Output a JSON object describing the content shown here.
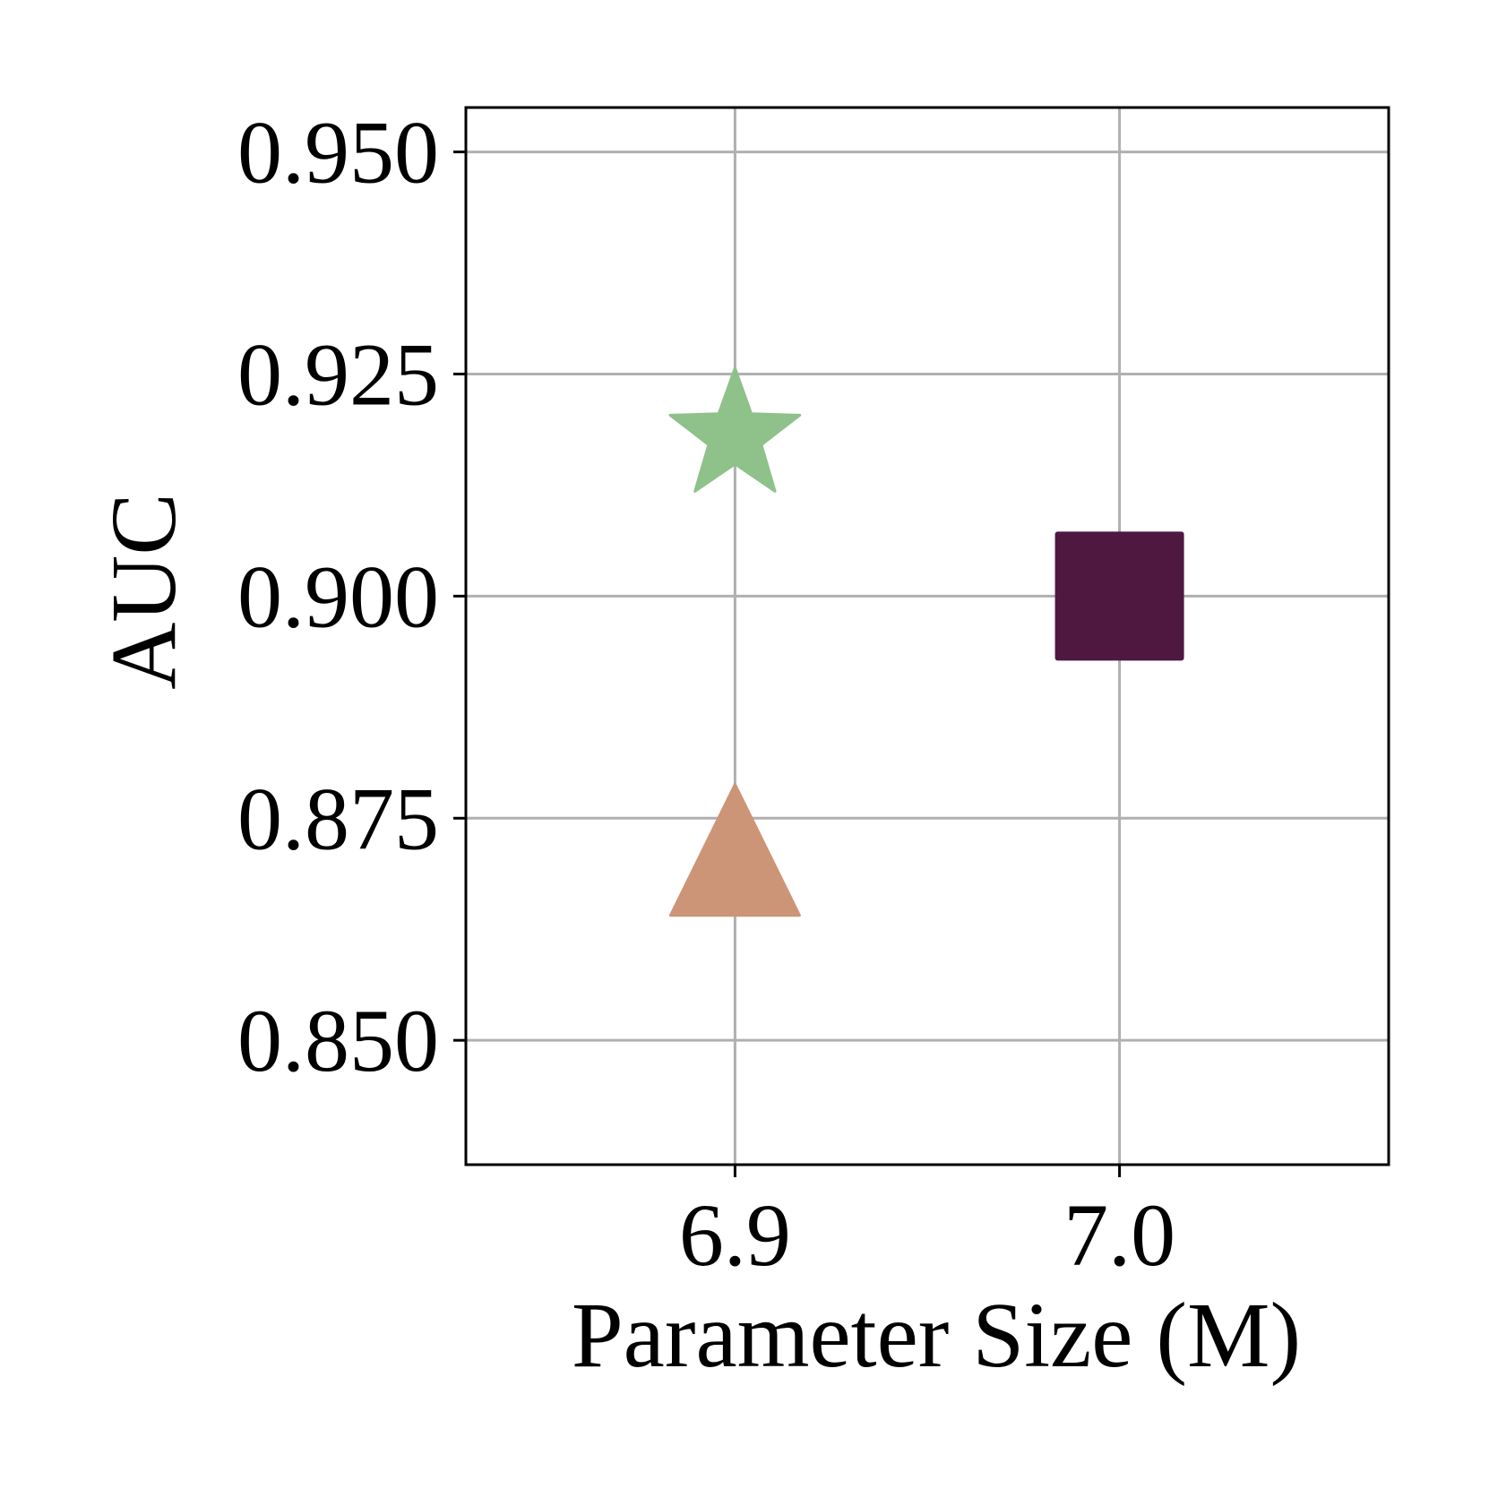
{
  "chart_data": {
    "type": "scatter",
    "title": "",
    "xlabel": "Parameter Size (M)",
    "ylabel": "AUC",
    "xlim": [
      6.83,
      7.07
    ],
    "ylim": [
      0.836,
      0.955
    ],
    "x_ticks": [
      6.9,
      7.0
    ],
    "x_tick_labels": [
      "6.9",
      "7.0"
    ],
    "y_ticks": [
      0.85,
      0.875,
      0.9,
      0.925,
      0.95
    ],
    "y_tick_labels": [
      "0.850",
      "0.875",
      "0.900",
      "0.925",
      "0.950"
    ],
    "grid": true,
    "legend": "none",
    "points": [
      {
        "x": 6.9,
        "y": 0.918,
        "marker": "star",
        "color": "#8fc18a"
      },
      {
        "x": 6.9,
        "y": 0.869,
        "marker": "triangle",
        "color": "#cd9577"
      },
      {
        "x": 7.0,
        "y": 0.9,
        "marker": "square",
        "color": "#4e1840"
      }
    ]
  }
}
